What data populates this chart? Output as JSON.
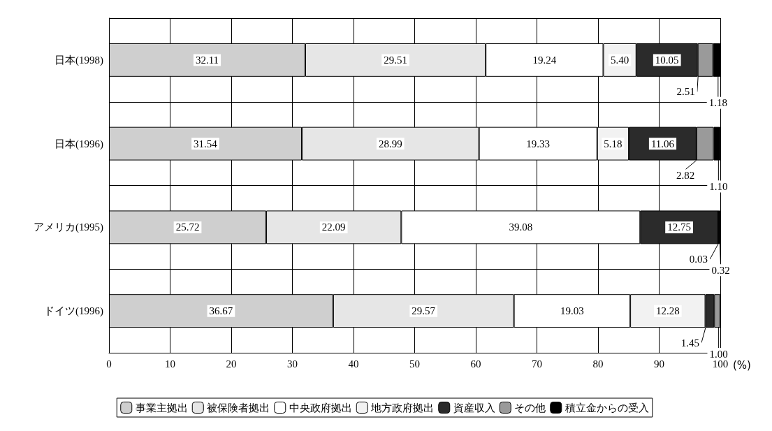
{
  "chart_data": {
    "type": "bar",
    "orientation": "horizontal",
    "stacked": true,
    "categories": [
      "日本(1998)",
      "日本(1996)",
      "アメリカ(1995)",
      "ドイツ(1996)"
    ],
    "xlabel": "(%)",
    "xlim": [
      0,
      100
    ],
    "xticks": [
      0,
      10,
      20,
      30,
      40,
      50,
      60,
      70,
      80,
      90,
      100
    ],
    "grid": true,
    "legend": "bottom",
    "series": [
      {
        "name": "事業主拠出",
        "color": "#cfcfcf",
        "values": [
          32.11,
          31.54,
          25.72,
          36.67
        ],
        "value_labels": [
          "32.11",
          "31.54",
          "25.72",
          "36.67"
        ]
      },
      {
        "name": "被保険者拠出",
        "color": "#e6e6e6",
        "values": [
          29.51,
          28.99,
          22.09,
          29.57
        ],
        "value_labels": [
          "29.51",
          "28.99",
          "22.09",
          "29.57"
        ]
      },
      {
        "name": "中央政府拠出",
        "color": "#ffffff",
        "values": [
          19.24,
          19.33,
          39.08,
          19.03
        ],
        "value_labels": [
          "19.24",
          "19.33",
          "39.08",
          "19.03"
        ]
      },
      {
        "name": "地方政府拠出",
        "color": "#f2f2f2",
        "values": [
          5.4,
          5.18,
          null,
          12.28
        ],
        "value_labels": [
          "5.40",
          "5.18",
          null,
          "12.28"
        ]
      },
      {
        "name": "資産収入",
        "color": "#2b2b2b",
        "values": [
          10.05,
          11.06,
          12.75,
          1.45
        ],
        "value_labels": [
          "10.05",
          "11.06",
          "12.75",
          "1.45"
        ]
      },
      {
        "name": "その他",
        "color": "#9a9a9a",
        "values": [
          2.51,
          2.82,
          0.03,
          1.0
        ],
        "value_labels": [
          "2.51",
          "2.82",
          "0.03",
          "1.00"
        ]
      },
      {
        "name": "積立金からの受入",
        "color": "#000000",
        "values": [
          1.18,
          1.1,
          0.32,
          null
        ],
        "value_labels": [
          "1.18",
          "1.10",
          "0.32",
          null
        ]
      }
    ]
  }
}
